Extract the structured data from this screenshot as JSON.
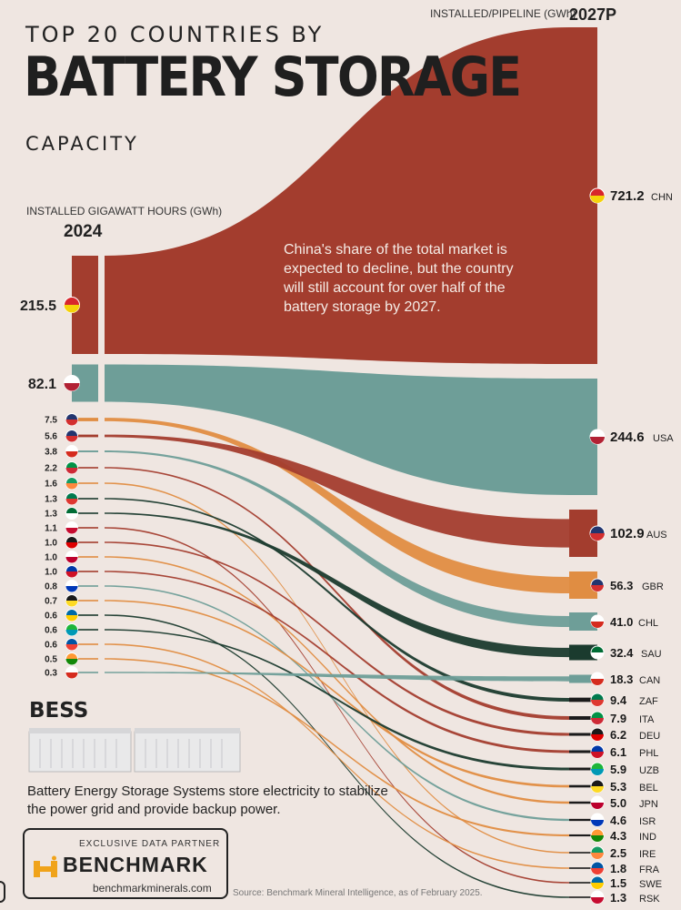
{
  "header": {
    "title_top": "TOP 20 COUNTRIES BY",
    "title_main": "BATTERY STORAGE",
    "title_bottom": "CAPACITY",
    "left_subtitle": "INSTALLED GIGAWATT HOURS (GWh)",
    "left_year": "2024",
    "right_subtitle": "INSTALLED/PIPELINE (GWh)",
    "right_year": "2027P"
  },
  "annotation": "China's share of the total market is expected to decline, but the country will still account for over half of the battery storage by 2027.",
  "bess": {
    "title": "BESS",
    "description": "Battery Energy Storage Systems store electricity to stabilize the power grid and provide backup power."
  },
  "partner": {
    "label": "EXCLUSIVE DATA PARTNER",
    "name": "BENCHMARK",
    "url": "benchmarkminerals.com"
  },
  "source": "Source: Benchmark Mineral Intelligence, as of February 2025.",
  "colors": {
    "background": "#efe6e1",
    "china": "#a33d2e",
    "usa": "#6e9e98",
    "aus": "#a33d2e",
    "gbr": "#e08d42",
    "chl": "#6e9e98",
    "sau": "#1b3b2e",
    "thin_flows": [
      "#a33d2e",
      "#e08d42",
      "#1b3b2e",
      "#6e9e98"
    ]
  },
  "chart_data": {
    "type": "sankey",
    "x_labels": [
      "2024",
      "2027P"
    ],
    "unit": "GWh",
    "left_2024": [
      {
        "value": 215.5,
        "flag": "china-flag-icon"
      },
      {
        "value": 82.1,
        "flag": "usa-flag-icon"
      },
      {
        "value": 7.5,
        "flag": "gbr-flag-icon"
      },
      {
        "value": 5.6,
        "flag": "aus-flag-icon"
      },
      {
        "value": 3.8,
        "flag": "chl-flag-icon"
      },
      {
        "value": 2.2,
        "flag": "ita-flag-icon"
      },
      {
        "value": 1.6,
        "flag": "ire-flag-icon"
      },
      {
        "value": 1.3,
        "flag": "zaf-flag-icon"
      },
      {
        "value": 1.3,
        "flag": "sau-flag-icon"
      },
      {
        "value": 1.1,
        "flag": "kor-flag-icon"
      },
      {
        "value": 1.0,
        "flag": "deu-flag-icon"
      },
      {
        "value": 1.0,
        "flag": "jpn-flag-icon"
      },
      {
        "value": 1.0,
        "flag": "phl-flag-icon"
      },
      {
        "value": 0.8,
        "flag": "isr-flag-icon"
      },
      {
        "value": 0.7,
        "flag": "bel-flag-icon"
      },
      {
        "value": 0.6,
        "flag": "swe-flag-icon"
      },
      {
        "value": 0.6,
        "flag": "uzb-flag-icon"
      },
      {
        "value": 0.6,
        "flag": "fra-flag-icon"
      },
      {
        "value": 0.5,
        "flag": "ind-flag-icon"
      },
      {
        "value": 0.3,
        "flag": "can-flag-icon"
      }
    ],
    "right_2027": [
      {
        "code": "CHN",
        "value": 721.2
      },
      {
        "code": "USA",
        "value": 244.6
      },
      {
        "code": "AUS",
        "value": 102.9
      },
      {
        "code": "GBR",
        "value": 56.3
      },
      {
        "code": "CHL",
        "value": 41.0
      },
      {
        "code": "SAU",
        "value": 32.4
      },
      {
        "code": "CAN",
        "value": 18.3
      },
      {
        "code": "ZAF",
        "value": 9.4
      },
      {
        "code": "ITA",
        "value": 7.9
      },
      {
        "code": "DEU",
        "value": 6.2
      },
      {
        "code": "PHL",
        "value": 6.1
      },
      {
        "code": "UZB",
        "value": 5.9
      },
      {
        "code": "BEL",
        "value": 5.3
      },
      {
        "code": "JPN",
        "value": 5.0
      },
      {
        "code": "ISR",
        "value": 4.6
      },
      {
        "code": "IND",
        "value": 4.3
      },
      {
        "code": "IRE",
        "value": 2.5
      },
      {
        "code": "FRA",
        "value": 1.8
      },
      {
        "code": "SWE",
        "value": 1.5
      },
      {
        "code": "RSK",
        "value": 1.3
      }
    ]
  }
}
